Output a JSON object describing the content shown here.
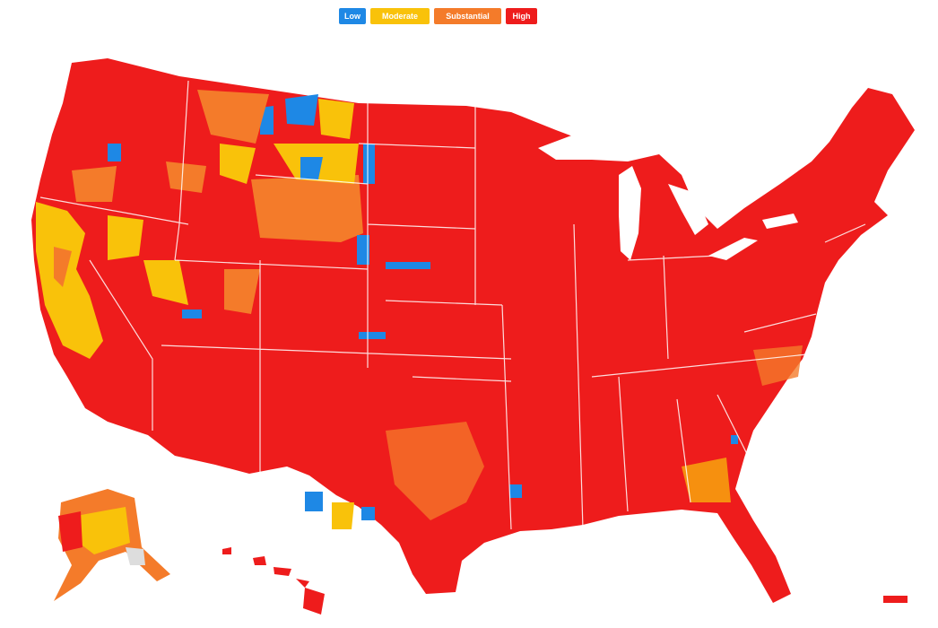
{
  "legend": {
    "items": [
      {
        "label": "Low",
        "color": "#1e88e5"
      },
      {
        "label": "Moderate",
        "color": "#f9c20a"
      },
      {
        "label": "Substantial",
        "color": "#f47b2a"
      },
      {
        "label": "High",
        "color": "#ee1c1c"
      }
    ]
  }
}
